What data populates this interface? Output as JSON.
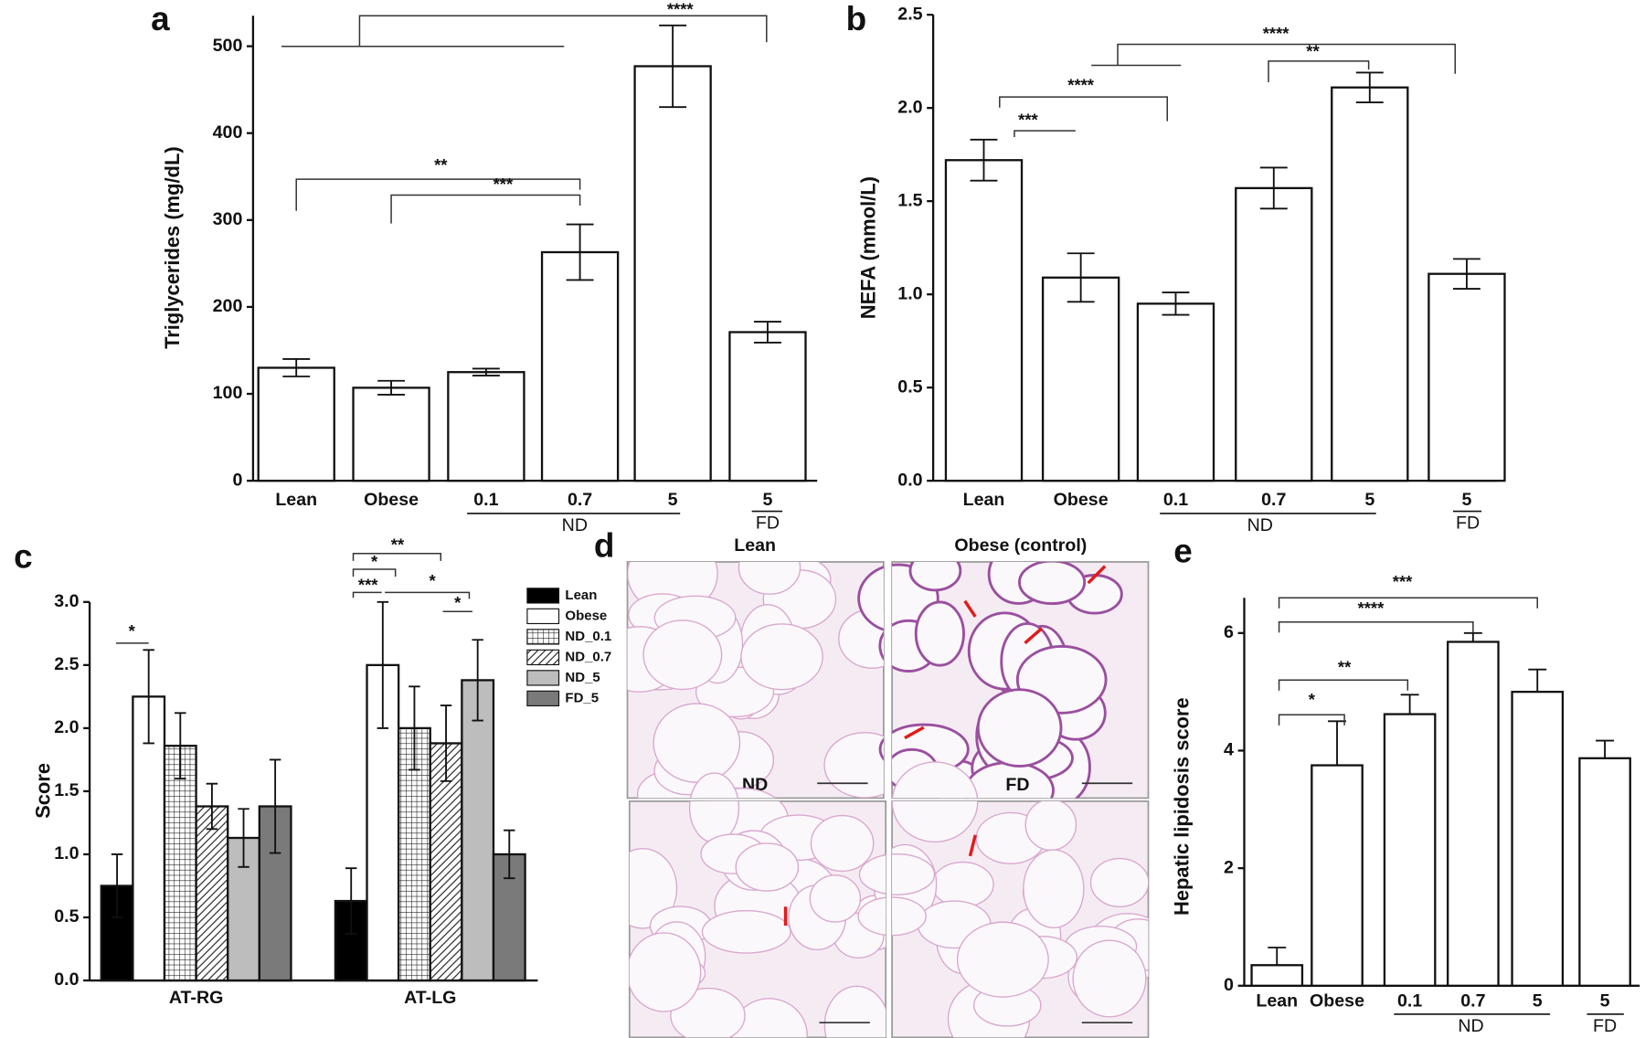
{
  "chart_data": [
    {
      "type": "bar",
      "panel": "a",
      "y_label": "Triglycerides (mg/dL)",
      "categories": [
        "Lean",
        "Obese",
        "0.1",
        "0.7",
        "5",
        "5"
      ],
      "group_labels": [
        "ND",
        "FD"
      ],
      "values": [
        130,
        107,
        125,
        263,
        477,
        171
      ],
      "errors": [
        10,
        8,
        4,
        32,
        47,
        12
      ],
      "error_bars": "both",
      "color": "#ffffff",
      "ylim": [
        0,
        535
      ],
      "yticks": [
        0,
        100,
        200,
        300,
        400,
        500
      ],
      "annotations": [
        "****",
        "**",
        "***"
      ]
    },
    {
      "type": "bar",
      "panel": "b",
      "y_label": "NEFA (mmol/L)",
      "categories": [
        "Lean",
        "Obese",
        "0.1",
        "0.7",
        "5",
        "5"
      ],
      "group_labels": [
        "ND",
        "FD"
      ],
      "values": [
        1.72,
        1.09,
        0.95,
        1.57,
        2.11,
        1.11
      ],
      "errors": [
        0.11,
        0.13,
        0.06,
        0.11,
        0.08,
        0.08
      ],
      "error_bars": "both",
      "color": "#ffffff",
      "ylim": [
        0,
        2.5
      ],
      "yticks": [
        {
          "value": 0,
          "label": "0.0"
        },
        0.5,
        {
          "value": 1,
          "label": "1.0"
        },
        1.5,
        {
          "value": 2,
          "label": "2.0"
        },
        2.5
      ],
      "annotations": [
        "***",
        "****",
        "****",
        "**"
      ]
    },
    {
      "type": "grouped-bar",
      "panel": "c",
      "y_label": "Score",
      "categories": [
        "AT-RG",
        "AT-LG"
      ],
      "error_bars": "both",
      "series": [
        {
          "name": "Lean",
          "color": "#000000",
          "values": [
            0.75,
            0.63
          ],
          "errors": [
            0.25,
            0.26
          ]
        },
        {
          "name": "Obese",
          "color": "#ffffff",
          "values": [
            2.25,
            2.5
          ],
          "errors": [
            0.37,
            0.5
          ]
        },
        {
          "name": "ND_0.1",
          "color": "#ffffff",
          "pattern": "grid",
          "values": [
            1.86,
            2.0
          ],
          "errors": [
            0.26,
            0.33
          ]
        },
        {
          "name": "ND_0.7",
          "color": "#ffffff",
          "pattern": "hatch",
          "values": [
            1.38,
            1.88
          ],
          "errors": [
            0.18,
            0.3
          ]
        },
        {
          "name": "ND_5",
          "color": "#bdbdbd",
          "values": [
            1.13,
            2.38
          ],
          "errors": [
            0.23,
            0.32
          ]
        },
        {
          "name": "FD_5",
          "color": "#7a7a7a",
          "values": [
            1.38,
            1.0
          ],
          "errors": [
            0.37,
            0.19
          ]
        }
      ],
      "ylim": [
        0,
        3
      ],
      "yticks": [
        {
          "value": 0,
          "label": "0.0"
        },
        0.5,
        {
          "value": 1,
          "label": "1.0"
        },
        1.5,
        {
          "value": 2,
          "label": "2.0"
        },
        2.5,
        {
          "value": 3,
          "label": "3.0"
        }
      ],
      "annotations": [
        "*",
        "**",
        "*",
        "***",
        "*",
        "*"
      ]
    },
    {
      "type": "bar",
      "panel": "e",
      "y_label": "Hepatic lipidosis score",
      "categories": [
        "Lean",
        "Obese",
        "0.1",
        "0.7",
        "5",
        "5"
      ],
      "group_labels": [
        "ND",
        "FD"
      ],
      "values": [
        0.35,
        3.75,
        4.62,
        5.85,
        5.0,
        3.87
      ],
      "errors": [
        0.3,
        0.75,
        0.33,
        0.15,
        0.38,
        0.3
      ],
      "error_bars": "upper",
      "color": "#ffffff",
      "ylim": [
        0,
        6.6
      ],
      "yticks": [
        0,
        2,
        4,
        6
      ],
      "annotations": [
        "*",
        "**",
        "****",
        "***"
      ]
    }
  ],
  "micrographs": {
    "panel": "d",
    "titles": [
      "Lean",
      "Obese (control)",
      "ND",
      "FD"
    ]
  }
}
